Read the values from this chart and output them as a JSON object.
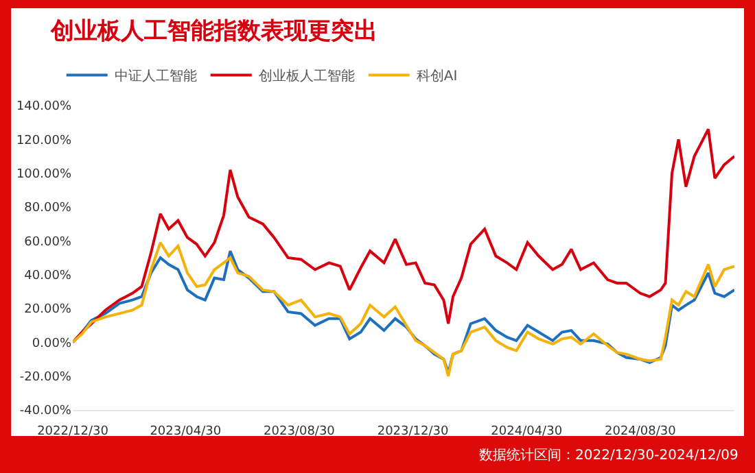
{
  "chart_data": {
    "type": "line",
    "title": "创业板人工智能指数表现更突出",
    "annotations": [
      "数据统计区间：2022/12/30-2024/12/09"
    ],
    "x": [
      "2022-12-30",
      "2023-01-09",
      "2023-01-19",
      "2023-02-03",
      "2023-02-18",
      "2023-03-04",
      "2023-03-14",
      "2023-03-24",
      "2023-04-03",
      "2023-04-12",
      "2023-04-22",
      "2023-05-02",
      "2023-05-12",
      "2023-05-21",
      "2023-05-31",
      "2023-06-10",
      "2023-06-17",
      "2023-06-25",
      "2023-07-07",
      "2023-07-22",
      "2023-08-03",
      "2023-08-18",
      "2023-09-01",
      "2023-09-16",
      "2023-10-01",
      "2023-10-13",
      "2023-10-23",
      "2023-11-04",
      "2023-11-14",
      "2023-11-29",
      "2023-12-11",
      "2023-12-23",
      "2024-01-02",
      "2024-01-12",
      "2024-01-22",
      "2024-02-01",
      "2024-02-06",
      "2024-02-11",
      "2024-02-20",
      "2024-03-01",
      "2024-03-16",
      "2024-03-28",
      "2024-04-09",
      "2024-04-19",
      "2024-05-01",
      "2024-05-13",
      "2024-05-28",
      "2024-06-07",
      "2024-06-17",
      "2024-06-27",
      "2024-07-11",
      "2024-07-26",
      "2024-08-05",
      "2024-08-15",
      "2024-08-30",
      "2024-09-09",
      "2024-09-21",
      "2024-09-26",
      "2024-10-03",
      "2024-10-10",
      "2024-10-18",
      "2024-10-27",
      "2024-11-11",
      "2024-11-18",
      "2024-11-28",
      "2024-12-09"
    ],
    "series": [
      {
        "name": "中证人工智能",
        "color": "#1f6fbf",
        "values": [
          0,
          6,
          13,
          17,
          23,
          25,
          27,
          41,
          50,
          46,
          43,
          31,
          27,
          25,
          38,
          37,
          54,
          43,
          38,
          30,
          30,
          18,
          17,
          10,
          14,
          14,
          2,
          6,
          14,
          7,
          14,
          9,
          2,
          -2,
          -7,
          -10,
          -18,
          -7,
          -5,
          11,
          14,
          7,
          3,
          1,
          10,
          6,
          1,
          6,
          7,
          1,
          1,
          -1,
          -6,
          -9,
          -10,
          -12,
          -9,
          -2,
          22,
          19,
          22,
          25,
          41,
          29,
          27,
          31
        ]
      },
      {
        "name": "创业板人工智能",
        "color": "#d7000f",
        "values": [
          0,
          6,
          11,
          19,
          25,
          29,
          33,
          53,
          76,
          67,
          72,
          62,
          58,
          51,
          59,
          75,
          102,
          86,
          74,
          70,
          62,
          50,
          49,
          43,
          47,
          45,
          31,
          44,
          54,
          47,
          61,
          46,
          47,
          35,
          34,
          25,
          11,
          27,
          38,
          58,
          67,
          51,
          47,
          43,
          59,
          51,
          43,
          46,
          55,
          43,
          47,
          37,
          35,
          35,
          29,
          27,
          31,
          35,
          100,
          120,
          92,
          110,
          126,
          97,
          105,
          110
        ]
      },
      {
        "name": "科创AI",
        "color": "#f5b20a",
        "values": [
          0,
          5,
          12,
          15,
          17,
          19,
          22,
          43,
          59,
          51,
          57,
          41,
          33,
          34,
          43,
          47,
          50,
          41,
          39,
          31,
          30,
          22,
          25,
          15,
          17,
          15,
          5,
          11,
          22,
          15,
          21,
          10,
          1,
          -2,
          -6,
          -10,
          -20,
          -7,
          -5,
          6,
          9,
          1,
          -3,
          -5,
          6,
          2,
          -1,
          2,
          3,
          -1,
          5,
          -2,
          -6,
          -7,
          -10,
          -11,
          -10,
          3,
          25,
          22,
          30,
          27,
          46,
          33,
          43,
          45
        ]
      }
    ],
    "xlim": [
      "2022-12-30",
      "2024-12-09"
    ],
    "xticks": [
      {
        "value": "2022-12-30",
        "label": "2022/12/30"
      },
      {
        "value": "2023-04-30",
        "label": "2023/04/30"
      },
      {
        "value": "2023-08-30",
        "label": "2023/08/30"
      },
      {
        "value": "2023-12-30",
        "label": "2023/12/30"
      },
      {
        "value": "2024-04-30",
        "label": "2024/04/30"
      },
      {
        "value": "2024-08-30",
        "label": "2024/08/30"
      }
    ],
    "ylim": [
      -40,
      140
    ],
    "yticks": [
      {
        "value": -40,
        "label": "-40.00%"
      },
      {
        "value": -20,
        "label": "-20.00%"
      },
      {
        "value": 0,
        "label": "0.00%"
      },
      {
        "value": 20,
        "label": "20.00%"
      },
      {
        "value": 40,
        "label": "40.00%"
      },
      {
        "value": 60,
        "label": "60.00%"
      },
      {
        "value": 80,
        "label": "80.00%"
      },
      {
        "value": 100,
        "label": "100.00%"
      },
      {
        "value": 120,
        "label": "120.00%"
      },
      {
        "value": 140,
        "label": "140.00%"
      }
    ],
    "legend": "top left",
    "marker": "none",
    "line_style": "solid"
  }
}
